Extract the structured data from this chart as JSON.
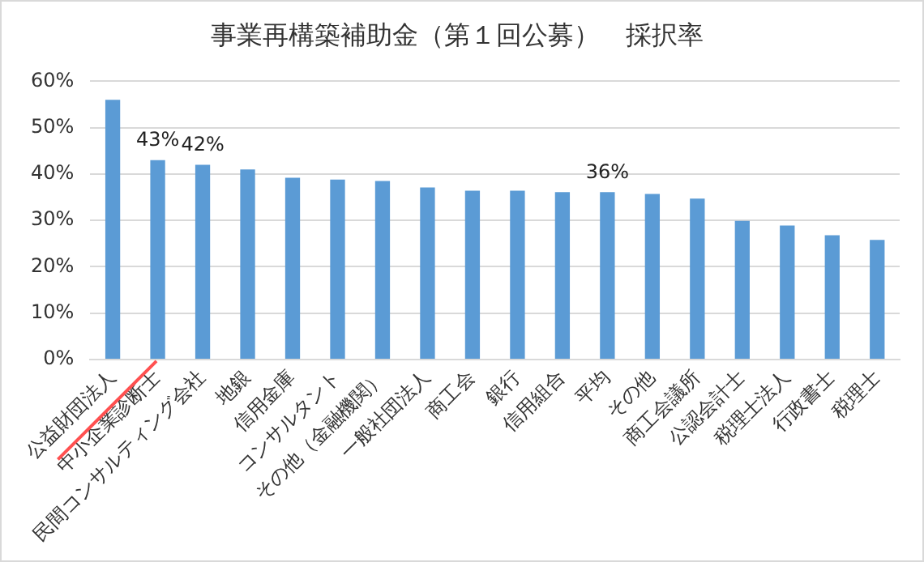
{
  "chart_data": {
    "type": "bar",
    "title": "事業再構築補助金（第１回公募）　採択率",
    "categories": [
      "公益財団法人",
      "中小企業診断士",
      "民間コンサルティング会社",
      "地銀",
      "信用金庫",
      "コンサルタント",
      "その他（金融機関）",
      "一般社団法人",
      "商工会",
      "銀行",
      "信用組合",
      "平均",
      "その他",
      "商工会議所",
      "公認会計士",
      "税理士法人",
      "行政書士",
      "税理士"
    ],
    "values": [
      56,
      43,
      42,
      41,
      39.2,
      38.8,
      38.5,
      37.1,
      36.4,
      36.4,
      36.1,
      36.1,
      35.7,
      34.7,
      29.9,
      28.9,
      26.8,
      25.8
    ],
    "value_labels": [
      null,
      "43%",
      "42%",
      null,
      null,
      null,
      null,
      null,
      null,
      null,
      null,
      "36%",
      null,
      null,
      null,
      null,
      null,
      null
    ],
    "color": "#5b9bd5",
    "ylim": [
      0,
      60
    ],
    "yticks": [
      {
        "value": 0,
        "label": "0%"
      },
      {
        "value": 10,
        "label": "10%"
      },
      {
        "value": 20,
        "label": "20%"
      },
      {
        "value": 30,
        "label": "30%"
      },
      {
        "value": 40,
        "label": "40%"
      },
      {
        "value": 50,
        "label": "50%"
      },
      {
        "value": 60,
        "label": "60%"
      }
    ],
    "grid": "y",
    "legend": false
  }
}
